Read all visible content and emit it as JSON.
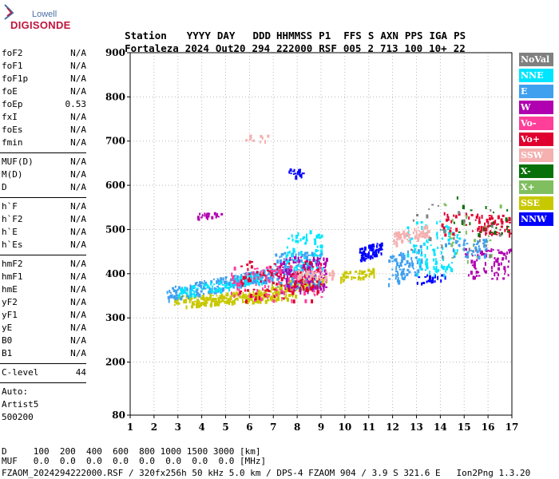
{
  "logo": {
    "brand_top": "Lowell",
    "brand_bottom": "DIGISONDE"
  },
  "header": {
    "labels": [
      "Station",
      "YYYY",
      "DAY",
      "DDD",
      "HHMMSS",
      "P1",
      "FFS",
      "S",
      "AXN",
      "PPS",
      "IGA",
      "PS"
    ],
    "values": [
      "Fortaleza",
      "2024",
      "Out20",
      "294",
      "222000",
      "RSF",
      "005",
      "2",
      "713",
      "100",
      "10+",
      "22"
    ]
  },
  "params_group1": [
    {
      "name": "foF2",
      "value": "N/A"
    },
    {
      "name": "foF1",
      "value": "N/A"
    },
    {
      "name": "foF1p",
      "value": "N/A"
    },
    {
      "name": "foE",
      "value": "N/A"
    },
    {
      "name": "foEp",
      "value": "0.53"
    },
    {
      "name": "fxI",
      "value": "N/A"
    },
    {
      "name": "foEs",
      "value": "N/A"
    },
    {
      "name": "fmin",
      "value": "N/A"
    }
  ],
  "params_group2": [
    {
      "name": "MUF(D)",
      "value": "N/A"
    },
    {
      "name": "M(D)",
      "value": "N/A"
    },
    {
      "name": "D",
      "value": "N/A"
    }
  ],
  "params_group3": [
    {
      "name": "h`F",
      "value": "N/A"
    },
    {
      "name": "h`F2",
      "value": "N/A"
    },
    {
      "name": "h`E",
      "value": "N/A"
    },
    {
      "name": "h`Es",
      "value": "N/A"
    }
  ],
  "params_group4": [
    {
      "name": "hmF2",
      "value": "N/A"
    },
    {
      "name": "hmF1",
      "value": "N/A"
    },
    {
      "name": "hmE",
      "value": "N/A"
    },
    {
      "name": "yF2",
      "value": "N/A"
    },
    {
      "name": "yF1",
      "value": "N/A"
    },
    {
      "name": "yE",
      "value": "N/A"
    },
    {
      "name": "B0",
      "value": "N/A"
    },
    {
      "name": "B1",
      "value": "N/A"
    }
  ],
  "clevel": {
    "name": "C-level",
    "value": "44"
  },
  "autoscale": {
    "line1": "Auto:",
    "line2": "Artist5",
    "line3": "500200"
  },
  "footer": {
    "d_row": "D     100  200  400  600  800 1000 1500 3000 [km]",
    "muf_row": "MUF   0.0  0.0  0.0  0.0  0.0  0.0  0.0  0.0 [MHz]",
    "file_row": "FZAOM_2024294222000.RSF / 320fx256h 50 kHz 5.0 km / DPS-4 FZAOM 904 / 3.9 S 321.6 E   Ion2Png 1.3.20"
  },
  "chart_data": {
    "type": "scatter",
    "xlim": [
      1,
      17
    ],
    "ylim": [
      80,
      900
    ],
    "x_ticks": [
      1,
      2,
      3,
      4,
      5,
      6,
      7,
      8,
      9,
      10,
      11,
      12,
      13,
      14,
      15,
      16,
      17
    ],
    "y_ticks": [
      80,
      200,
      300,
      400,
      500,
      600,
      700,
      800,
      900
    ],
    "grid": "dotted",
    "legend_placement": "right",
    "legend": [
      {
        "name": "NoVal",
        "color": "#808080"
      },
      {
        "name": "NNE",
        "color": "#00e5ff"
      },
      {
        "name": "E",
        "color": "#3fa0f0"
      },
      {
        "name": "W",
        "color": "#b000b0"
      },
      {
        "name": "Vo-",
        "color": "#ff3f9a"
      },
      {
        "name": "Vo+",
        "color": "#e0002f"
      },
      {
        "name": "SSW",
        "color": "#f5b0b0"
      },
      {
        "name": "X-",
        "color": "#087008"
      },
      {
        "name": "X+",
        "color": "#7fbf5f"
      },
      {
        "name": "SSE",
        "color": "#c8c800"
      },
      {
        "name": "NNW",
        "color": "#0000ff"
      }
    ],
    "clusters": [
      {
        "series": "SSE",
        "x": [
          2.8,
          7.9
        ],
        "y": [
          325,
          350
        ],
        "slope": 4,
        "n": 260
      },
      {
        "series": "SSE",
        "x": [
          6.9,
          9.2
        ],
        "y": [
          355,
          380
        ],
        "slope": 8,
        "n": 120
      },
      {
        "series": "SSE",
        "x": [
          9.8,
          11.2
        ],
        "y": [
          385,
          405
        ],
        "slope": 6,
        "n": 50
      },
      {
        "series": "E",
        "x": [
          2.5,
          7.0
        ],
        "y": [
          340,
          370
        ],
        "slope": 10,
        "n": 240
      },
      {
        "series": "E",
        "x": [
          7.0,
          9.0
        ],
        "y": [
          370,
          450
        ],
        "slope": 0,
        "n": 140
      },
      {
        "series": "E",
        "x": [
          11.8,
          13.2
        ],
        "y": [
          370,
          440
        ],
        "slope": 20,
        "n": 80
      },
      {
        "series": "NNE",
        "x": [
          3.0,
          6.5
        ],
        "y": [
          345,
          370
        ],
        "slope": 10,
        "n": 90
      },
      {
        "series": "NNE",
        "x": [
          7.5,
          9.0
        ],
        "y": [
          400,
          500
        ],
        "slope": 0,
        "n": 80
      },
      {
        "series": "NNE",
        "x": [
          12.5,
          14.8
        ],
        "y": [
          440,
          520
        ],
        "slope": 0,
        "n": 60
      },
      {
        "series": "W",
        "x": [
          7.2,
          9.2
        ],
        "y": [
          360,
          440
        ],
        "slope": 0,
        "n": 130
      },
      {
        "series": "W",
        "x": [
          15.0,
          16.9
        ],
        "y": [
          390,
          460
        ],
        "slope": 0,
        "n": 80
      },
      {
        "series": "W",
        "x": [
          3.8,
          4.8
        ],
        "y": [
          525,
          540
        ],
        "slope": 0,
        "n": 20
      },
      {
        "series": "Vo-",
        "x": [
          5.2,
          9.0
        ],
        "y": [
          340,
          420
        ],
        "slope": 0,
        "n": 110
      },
      {
        "series": "Vo+",
        "x": [
          5.5,
          9.0
        ],
        "y": [
          340,
          430
        ],
        "slope": 0,
        "n": 110
      },
      {
        "series": "Vo+",
        "x": [
          14.0,
          17.0
        ],
        "y": [
          490,
          540
        ],
        "slope": 0,
        "n": 90
      },
      {
        "series": "SSW",
        "x": [
          12.0,
          13.5
        ],
        "y": [
          465,
          495
        ],
        "slope": 12,
        "n": 90
      },
      {
        "series": "SSW",
        "x": [
          8.0,
          9.5
        ],
        "y": [
          390,
          410
        ],
        "slope": 0,
        "n": 50
      },
      {
        "series": "NNW",
        "x": [
          10.6,
          11.5
        ],
        "y": [
          430,
          460
        ],
        "slope": 15,
        "n": 70
      },
      {
        "series": "NNW",
        "x": [
          7.6,
          8.3
        ],
        "y": [
          620,
          640
        ],
        "slope": 0,
        "n": 20
      },
      {
        "series": "NNW",
        "x": [
          13.0,
          14.2
        ],
        "y": [
          380,
          400
        ],
        "slope": 0,
        "n": 20
      },
      {
        "series": "X-",
        "x": [
          14.5,
          16.8
        ],
        "y": [
          490,
          580
        ],
        "slope": 0,
        "n": 25
      },
      {
        "series": "X+",
        "x": [
          14.0,
          16.5
        ],
        "y": [
          430,
          560
        ],
        "slope": 0,
        "n": 25
      },
      {
        "series": "NoVal",
        "x": [
          12.0,
          16.5
        ],
        "y": [
          440,
          560
        ],
        "slope": 0,
        "n": 25
      },
      {
        "series": "SSW",
        "x": [
          5.7,
          6.8
        ],
        "y": [
          700,
          715
        ],
        "slope": 0,
        "n": 12
      },
      {
        "series": "NNE",
        "x": [
          13.0,
          14.5
        ],
        "y": [
          400,
          440
        ],
        "slope": 0,
        "n": 40
      },
      {
        "series": "E",
        "x": [
          14.0,
          16.0
        ],
        "y": [
          440,
          480
        ],
        "slope": 0,
        "n": 40
      }
    ]
  }
}
